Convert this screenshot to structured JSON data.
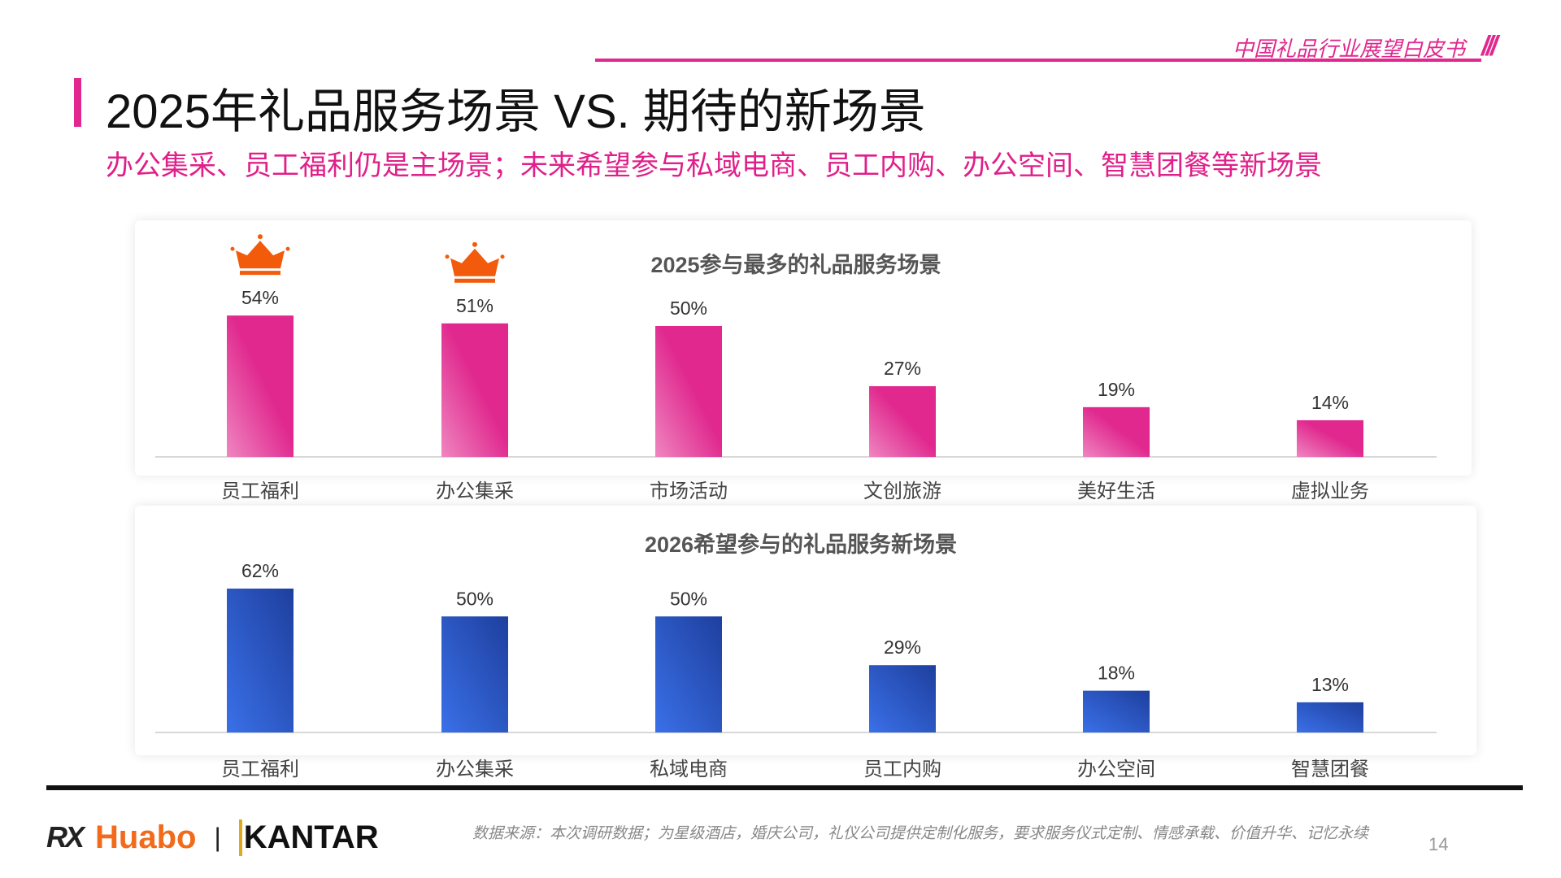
{
  "header": {
    "doc_title": "中国礼品行业展望白皮书",
    "slashes": "///"
  },
  "page_title": "2025年礼品服务场景 VS. 期待的新场景",
  "subtitle": "办公集采、员工福利仍是主场景；未来希望参与私域电商、员工内购、办公空间、智慧团餐等新场景",
  "colors": {
    "accent": "#e0288e",
    "bar_top_start": "#e0288e",
    "bar_top_end": "#ef86c0",
    "bar_bottom_start": "#1e3f9e",
    "bar_bottom_end": "#3a70e8",
    "crown": "#f25a0c"
  },
  "chart_data": [
    {
      "type": "bar",
      "title": "2025参与最多的礼品服务场景",
      "categories": [
        "员工福利",
        "办公集采",
        "市场活动",
        "文创旅游",
        "美好生活",
        "虚拟业务"
      ],
      "values": [
        54,
        51,
        50,
        27,
        19,
        14
      ],
      "value_labels": [
        "54%",
        "51%",
        "50%",
        "27%",
        "19%",
        "14%"
      ],
      "unit": "%",
      "highlighted_with_crown": [
        "员工福利",
        "办公集采"
      ],
      "grid": false
    },
    {
      "type": "bar",
      "title": "2026希望参与的礼品服务新场景",
      "categories": [
        "员工福利",
        "办公集采",
        "私域电商",
        "员工内购",
        "办公空间",
        "智慧团餐"
      ],
      "values": [
        62,
        50,
        50,
        29,
        18,
        13
      ],
      "value_labels": [
        "62%",
        "50%",
        "50%",
        "29%",
        "18%",
        "13%"
      ],
      "unit": "%",
      "grid": false
    }
  ],
  "footer": {
    "logo_rx": "RX",
    "logo_huabo": "Huabo",
    "logo_separator": "|",
    "logo_kantar": "KANTAR",
    "source": "数据来源：本次调研数据；为星级酒店，婚庆公司，礼仪公司提供定制化服务，要求服务仪式定制、情感承载、价值升华、记忆永续",
    "page_number": "14"
  }
}
